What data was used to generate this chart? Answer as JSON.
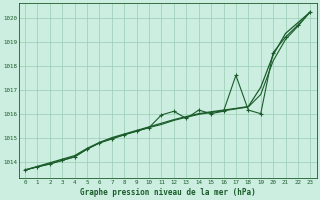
{
  "title": "Graphe pression niveau de la mer (hPa)",
  "background_color": "#cceee0",
  "plot_bg_color": "#cceee0",
  "grid_color": "#99ccb3",
  "line_color": "#1a5c2a",
  "xlim": [
    -0.5,
    23.5
  ],
  "ylim": [
    1013.3,
    1020.6
  ],
  "yticks": [
    1014,
    1015,
    1016,
    1017,
    1018,
    1019,
    1020
  ],
  "xticks": [
    0,
    1,
    2,
    3,
    4,
    5,
    6,
    7,
    8,
    9,
    10,
    11,
    12,
    13,
    14,
    15,
    16,
    17,
    18,
    19,
    20,
    21,
    22,
    23
  ],
  "smooth": [
    1013.65,
    1013.8,
    1013.95,
    1014.1,
    1014.25,
    1014.55,
    1014.8,
    1015.0,
    1015.15,
    1015.3,
    1015.45,
    1015.6,
    1015.75,
    1015.88,
    1016.0,
    1016.08,
    1016.15,
    1016.22,
    1016.3,
    1017.1,
    1018.45,
    1019.35,
    1019.8,
    1020.25
  ],
  "jagged": [
    1013.65,
    1013.78,
    1013.9,
    1014.05,
    1014.2,
    1014.52,
    1014.78,
    1014.95,
    1015.12,
    1015.27,
    1015.42,
    1015.95,
    1016.1,
    1015.8,
    1016.15,
    1016.0,
    1016.1,
    1017.6,
    1016.15,
    1016.0,
    1018.55,
    1019.2,
    1019.7,
    1020.25
  ],
  "close": [
    1013.65,
    1013.78,
    1013.9,
    1014.05,
    1014.2,
    1014.52,
    1014.78,
    1014.95,
    1015.12,
    1015.27,
    1015.42,
    1015.55,
    1015.72,
    1015.85,
    1015.97,
    1016.05,
    1016.12,
    1016.2,
    1016.28,
    1016.8,
    1018.2,
    1019.1,
    1019.65,
    1020.25
  ]
}
